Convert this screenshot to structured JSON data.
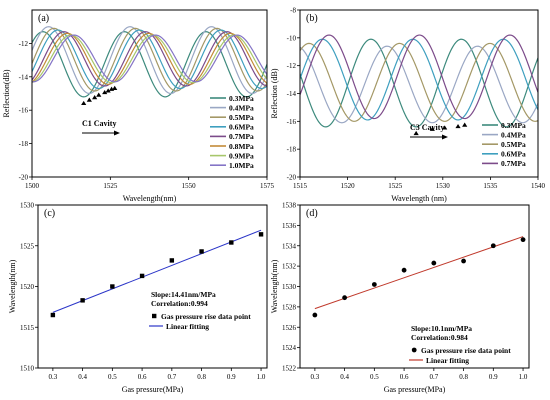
{
  "chart_data": [
    {
      "panel_label": "(a)",
      "type": "line",
      "xlabel": "Wavelength(nm)",
      "ylabel": "Reflection(dB)",
      "xlim": [
        1500,
        1575
      ],
      "ylim": [
        -20,
        -10
      ],
      "x_ticks": [
        1500,
        1525,
        1550,
        1575
      ],
      "y_ticks": [
        -20,
        -18,
        -16,
        -14,
        -12
      ],
      "annotation": "C1 Cavity",
      "legend_position": "bottom-right",
      "period": 26,
      "series": [
        {
          "name": "0.3MPa",
          "color": "#3d8a7d",
          "dip_x": 1516.5,
          "dip_y": -15.2,
          "peak_y": -11.3
        },
        {
          "name": "0.4MPa",
          "color": "#9aa7c4",
          "dip_x": 1518.3,
          "dip_y": -15.0,
          "peak_y": -11.0
        },
        {
          "name": "0.5MPa",
          "color": "#a49866",
          "dip_x": 1520.0,
          "dip_y": -14.85,
          "peak_y": -11.1
        },
        {
          "name": "0.6MPa",
          "color": "#3e9fbf",
          "dip_x": 1521.3,
          "dip_y": -14.7,
          "peak_y": -11.2
        },
        {
          "name": "0.7MPa",
          "color": "#7c4b8a",
          "dip_x": 1523.2,
          "dip_y": -14.55,
          "peak_y": -11.3
        },
        {
          "name": "0.8MPa",
          "color": "#c38a38",
          "dip_x": 1524.3,
          "dip_y": -14.45,
          "peak_y": -11.4
        },
        {
          "name": "0.9MPa",
          "color": "#a7c76b",
          "dip_x": 1525.4,
          "dip_y": -14.35,
          "peak_y": -11.5
        },
        {
          "name": "1.0MPa",
          "color": "#8474c6",
          "dip_x": 1526.4,
          "dip_y": -14.3,
          "peak_y": -11.5
        }
      ]
    },
    {
      "panel_label": "(b)",
      "type": "line",
      "xlabel": "Wavelength (nm)",
      "ylabel": "Reflection (dB)",
      "xlim": [
        1515,
        1540
      ],
      "ylim": [
        -20,
        -8
      ],
      "x_ticks": [
        1515,
        1520,
        1525,
        1530,
        1535,
        1540
      ],
      "y_ticks": [
        -20,
        -18,
        -16,
        -14,
        -12,
        -10,
        -8
      ],
      "annotation": "C3 Cavity",
      "legend_position": "bottom-right",
      "period": 9.5,
      "series": [
        {
          "name": "0.3MPa",
          "color": "#3d8a7d",
          "dip_x": 1527.2,
          "dip_y": -16.4,
          "peak_y": -10.1
        },
        {
          "name": "0.4MPa",
          "color": "#9aa7c4",
          "dip_x": 1528.9,
          "dip_y": -16.1,
          "peak_y": -10.6
        },
        {
          "name": "0.5MPa",
          "color": "#a49866",
          "dip_x": 1530.2,
          "dip_y": -16.0,
          "peak_y": -10.4
        },
        {
          "name": "0.6MPa",
          "color": "#3e9fbf",
          "dip_x": 1531.6,
          "dip_y": -15.9,
          "peak_y": -10.1
        },
        {
          "name": "0.7MPa",
          "color": "#7c4b8a",
          "dip_x": 1532.3,
          "dip_y": -15.8,
          "peak_y": -9.8
        }
      ]
    },
    {
      "panel_label": "(c)",
      "type": "scatter",
      "xlabel": "Gas pressure(MPa)",
      "ylabel": "Wavelength(nm)",
      "xlim": [
        0.25,
        1.02
      ],
      "ylim": [
        1510,
        1530
      ],
      "x_ticks": [
        0.3,
        0.4,
        0.5,
        0.6,
        0.7,
        0.8,
        0.9,
        1.0
      ],
      "y_ticks": [
        1510,
        1515,
        1520,
        1525,
        1530
      ],
      "x": [
        0.3,
        0.4,
        0.5,
        0.6,
        0.7,
        0.8,
        0.9,
        1.0
      ],
      "y": [
        1516.5,
        1518.3,
        1520.0,
        1521.3,
        1523.2,
        1524.3,
        1525.4,
        1526.4
      ],
      "marker": "square",
      "fit": {
        "slope": 14.41,
        "intercept": 1512.5,
        "color": "#2b35c8"
      },
      "annotations": [
        "Slope:14.41nm/MPa",
        "Correlation:0.994"
      ],
      "legend": [
        "Gas pressure rise data point",
        "Linear fitting"
      ]
    },
    {
      "panel_label": "(d)",
      "type": "scatter",
      "xlabel": "Gas pressure(MPa)",
      "ylabel": "Wavelength(nm)",
      "xlim": [
        0.25,
        1.02
      ],
      "ylim": [
        1522,
        1538
      ],
      "x_ticks": [
        0.3,
        0.4,
        0.5,
        0.6,
        0.7,
        0.8,
        0.9,
        1.0
      ],
      "y_ticks": [
        1522,
        1524,
        1526,
        1528,
        1530,
        1532,
        1534,
        1536,
        1538
      ],
      "x": [
        0.3,
        0.4,
        0.5,
        0.6,
        0.7,
        0.8,
        0.9,
        1.0
      ],
      "y": [
        1527.2,
        1528.9,
        1530.2,
        1531.6,
        1532.3,
        1532.5,
        1534.0,
        1534.6
      ],
      "marker": "circle",
      "fit": {
        "slope": 10.1,
        "intercept": 1524.8,
        "color": "#c0392b"
      },
      "annotations": [
        "Slope:10.1nm/MPa",
        "Correlation:0.984"
      ],
      "legend": [
        "Gas pressure rise data point",
        "Linear fitting"
      ]
    }
  ]
}
